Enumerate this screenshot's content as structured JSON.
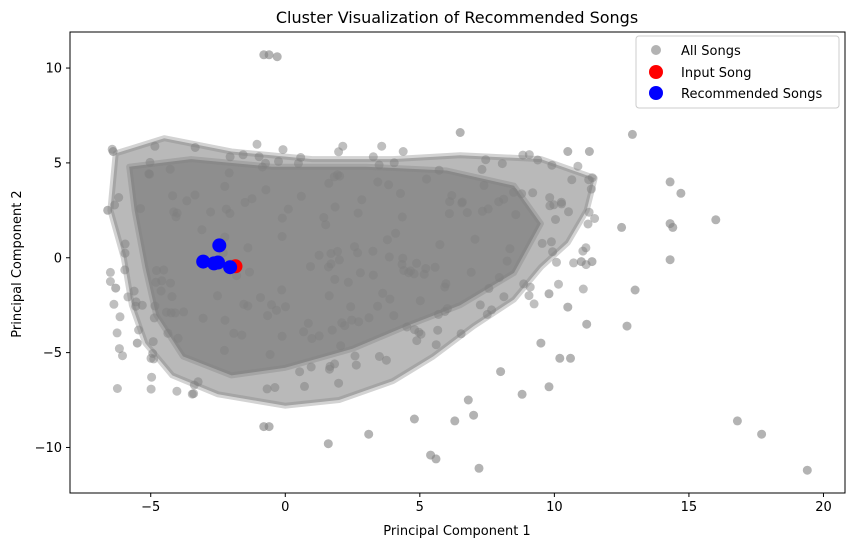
{
  "chart_data": {
    "type": "scatter",
    "title": "Cluster Visualization of Recommended Songs",
    "xlabel": "Principal Component 1",
    "ylabel": "Principal Component 2",
    "xlim": [
      -8.0,
      20.8
    ],
    "ylim": [
      -12.4,
      11.9
    ],
    "x_ticks": [
      -5,
      0,
      5,
      10,
      15,
      20
    ],
    "x_tick_labels": [
      "−5",
      "0",
      "5",
      "10",
      "15",
      "20"
    ],
    "y_ticks": [
      -10,
      -5,
      0,
      5,
      10
    ],
    "y_tick_labels": [
      "−10",
      "−5",
      "0",
      "5",
      "10"
    ],
    "grid": false,
    "legend_position": "top-right",
    "series": [
      {
        "name": "All Songs",
        "color": "#808080",
        "alpha": 0.55,
        "main_cloud": {
          "description_of_shape": "dense cluster",
          "x_range": [
            -6.5,
            12.0
          ],
          "y_range": [
            -7.0,
            6.8
          ]
        },
        "outliers": [
          {
            "x": -0.8,
            "y": 10.7
          },
          {
            "x": -0.6,
            "y": 10.7
          },
          {
            "x": -0.3,
            "y": 10.6
          },
          {
            "x": 12.9,
            "y": 6.5
          },
          {
            "x": 14.3,
            "y": 4.0
          },
          {
            "x": 14.7,
            "y": 3.4
          },
          {
            "x": 16.0,
            "y": 2.0
          },
          {
            "x": 14.3,
            "y": 1.8
          },
          {
            "x": 14.4,
            "y": 1.6
          },
          {
            "x": 12.5,
            "y": 1.6
          },
          {
            "x": 14.3,
            "y": -0.1
          },
          {
            "x": 13.0,
            "y": -1.7
          },
          {
            "x": 12.7,
            "y": -3.6
          },
          {
            "x": 11.2,
            "y": -3.5
          },
          {
            "x": 16.8,
            "y": -8.6
          },
          {
            "x": 17.7,
            "y": -9.3
          },
          {
            "x": 19.4,
            "y": -11.2
          },
          {
            "x": 7.2,
            "y": -11.1
          },
          {
            "x": 5.6,
            "y": -10.6
          },
          {
            "x": 5.4,
            "y": -10.4
          },
          {
            "x": 7.0,
            "y": -8.3
          },
          {
            "x": 6.8,
            "y": -7.5
          },
          {
            "x": 8.8,
            "y": -7.2
          },
          {
            "x": 9.8,
            "y": -6.8
          },
          {
            "x": 1.6,
            "y": -9.8
          },
          {
            "x": -0.6,
            "y": -8.9
          },
          {
            "x": -0.8,
            "y": -8.9
          },
          {
            "x": 8.0,
            "y": -6.0
          },
          {
            "x": 10.2,
            "y": -5.3
          },
          {
            "x": 10.6,
            "y": -5.3
          },
          {
            "x": 9.5,
            "y": -4.5
          },
          {
            "x": 10.5,
            "y": -2.6
          },
          {
            "x": 9.8,
            "y": -1.9
          },
          {
            "x": 11.0,
            "y": -0.2
          },
          {
            "x": 11.4,
            "y": -0.2
          },
          {
            "x": 11.3,
            "y": 5.6
          },
          {
            "x": 10.5,
            "y": 5.6
          },
          {
            "x": 6.5,
            "y": 6.6
          },
          {
            "x": -6.4,
            "y": 5.6
          },
          {
            "x": -6.6,
            "y": 2.5
          },
          {
            "x": -6.3,
            "y": -1.6
          },
          {
            "x": -5.5,
            "y": -4.5
          },
          {
            "x": 3.1,
            "y": -9.3
          },
          {
            "x": 4.8,
            "y": -8.5
          },
          {
            "x": 6.3,
            "y": -8.6
          }
        ]
      },
      {
        "name": "Input Song",
        "color": "#ff0000",
        "points": [
          {
            "x": -1.85,
            "y": -0.45
          }
        ]
      },
      {
        "name": "Recommended Songs",
        "color": "#0000ff",
        "points": [
          {
            "x": -3.05,
            "y": -0.2
          },
          {
            "x": -2.65,
            "y": -0.3
          },
          {
            "x": -2.5,
            "y": -0.25
          },
          {
            "x": -2.45,
            "y": 0.65
          },
          {
            "x": -2.05,
            "y": -0.5
          }
        ]
      }
    ]
  }
}
